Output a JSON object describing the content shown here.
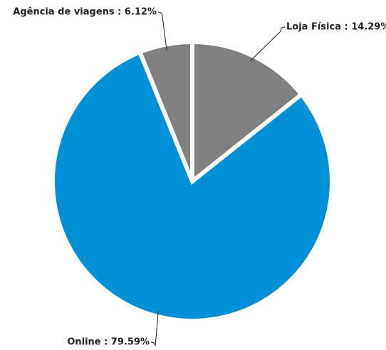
{
  "chart_data": {
    "type": "pie",
    "values": [
      14.29,
      79.59,
      6.12
    ],
    "value_labels": [
      "Loja Física : 14.29%",
      "Online : 79.59%",
      "Agência de viagens : 6.12%"
    ],
    "colors": [
      "#808080",
      "#0090d8",
      "#808080"
    ]
  }
}
